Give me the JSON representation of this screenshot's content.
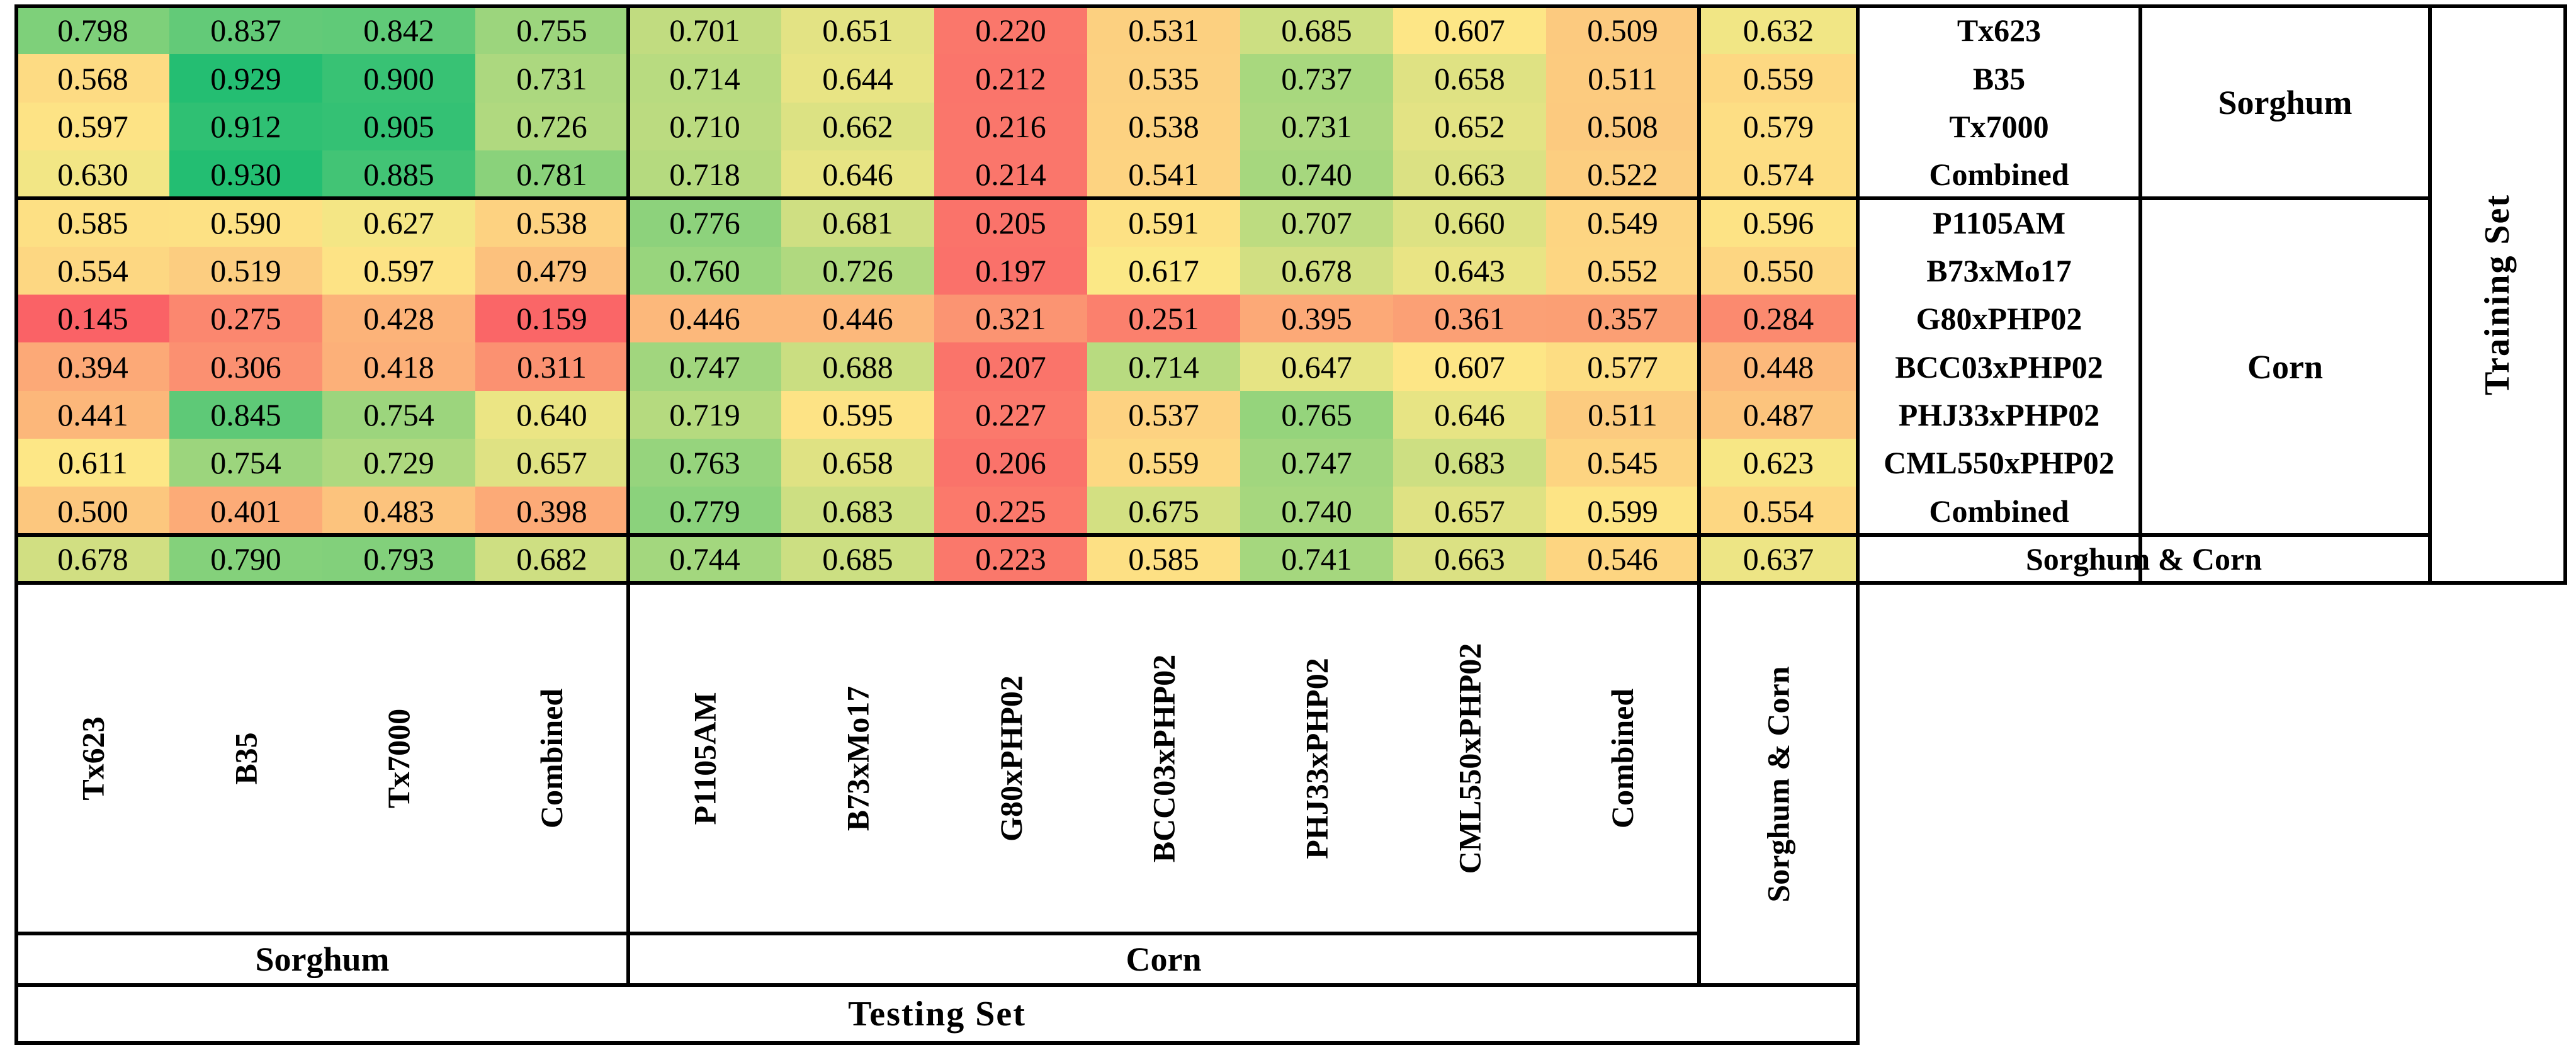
{
  "chart_data": {
    "type": "heatmap",
    "x_axis_label": "Testing Set",
    "y_axis_label": "Training Set",
    "columns": [
      "Tx623",
      "B35",
      "Tx7000",
      "Combined",
      "P1105AM",
      "B73xMo17",
      "G80xPHP02",
      "BCC03xPHP02",
      "PHJ33xPHP02",
      "CML550xPHP02",
      "Combined",
      "Sorghum & Corn"
    ],
    "column_groups": [
      {
        "label": "Sorghum",
        "from": 0,
        "to": 3
      },
      {
        "label": "Corn",
        "from": 4,
        "to": 10
      }
    ],
    "rows": [
      "Tx623",
      "B35",
      "Tx7000",
      "Combined",
      "P1105AM",
      "B73xMo17",
      "G80xPHP02",
      "BCC03xPHP02",
      "PHJ33xPHP02",
      "CML550xPHP02",
      "Combined",
      "Sorghum & Corn"
    ],
    "row_groups": [
      {
        "label": "Sorghum",
        "from": 0,
        "to": 3
      },
      {
        "label": "Corn",
        "from": 4,
        "to": 10
      }
    ],
    "values": [
      [
        0.798,
        0.837,
        0.842,
        0.755,
        0.701,
        0.651,
        0.22,
        0.531,
        0.685,
        0.607,
        0.509,
        0.632
      ],
      [
        0.568,
        0.929,
        0.9,
        0.731,
        0.714,
        0.644,
        0.212,
        0.535,
        0.737,
        0.658,
        0.511,
        0.559
      ],
      [
        0.597,
        0.912,
        0.905,
        0.726,
        0.71,
        0.662,
        0.216,
        0.538,
        0.731,
        0.652,
        0.508,
        0.579
      ],
      [
        0.63,
        0.93,
        0.885,
        0.781,
        0.718,
        0.646,
        0.214,
        0.541,
        0.74,
        0.663,
        0.522,
        0.574
      ],
      [
        0.585,
        0.59,
        0.627,
        0.538,
        0.776,
        0.681,
        0.205,
        0.591,
        0.707,
        0.66,
        0.549,
        0.596
      ],
      [
        0.554,
        0.519,
        0.597,
        0.479,
        0.76,
        0.726,
        0.197,
        0.617,
        0.678,
        0.643,
        0.552,
        0.55
      ],
      [
        0.145,
        0.275,
        0.428,
        0.159,
        0.446,
        0.446,
        0.321,
        0.251,
        0.395,
        0.361,
        0.357,
        0.284
      ],
      [
        0.394,
        0.306,
        0.418,
        0.311,
        0.747,
        0.688,
        0.207,
        0.714,
        0.647,
        0.607,
        0.577,
        0.448
      ],
      [
        0.441,
        0.845,
        0.754,
        0.64,
        0.719,
        0.595,
        0.227,
        0.537,
        0.765,
        0.646,
        0.511,
        0.487
      ],
      [
        0.611,
        0.754,
        0.729,
        0.657,
        0.763,
        0.658,
        0.206,
        0.559,
        0.747,
        0.683,
        0.545,
        0.623
      ],
      [
        0.5,
        0.401,
        0.483,
        0.398,
        0.779,
        0.683,
        0.225,
        0.675,
        0.74,
        0.657,
        0.599,
        0.554
      ],
      [
        0.678,
        0.79,
        0.793,
        0.682,
        0.744,
        0.685,
        0.223,
        0.585,
        0.741,
        0.663,
        0.546,
        0.637
      ]
    ],
    "decimals": 3,
    "colorscale": {
      "anchors": "min / median / max",
      "min_color": "#FA6266",
      "mid_color": "#FDE886",
      "max_color": "#23BE72"
    },
    "legend_position": "none",
    "grid": "group-borders-only"
  }
}
